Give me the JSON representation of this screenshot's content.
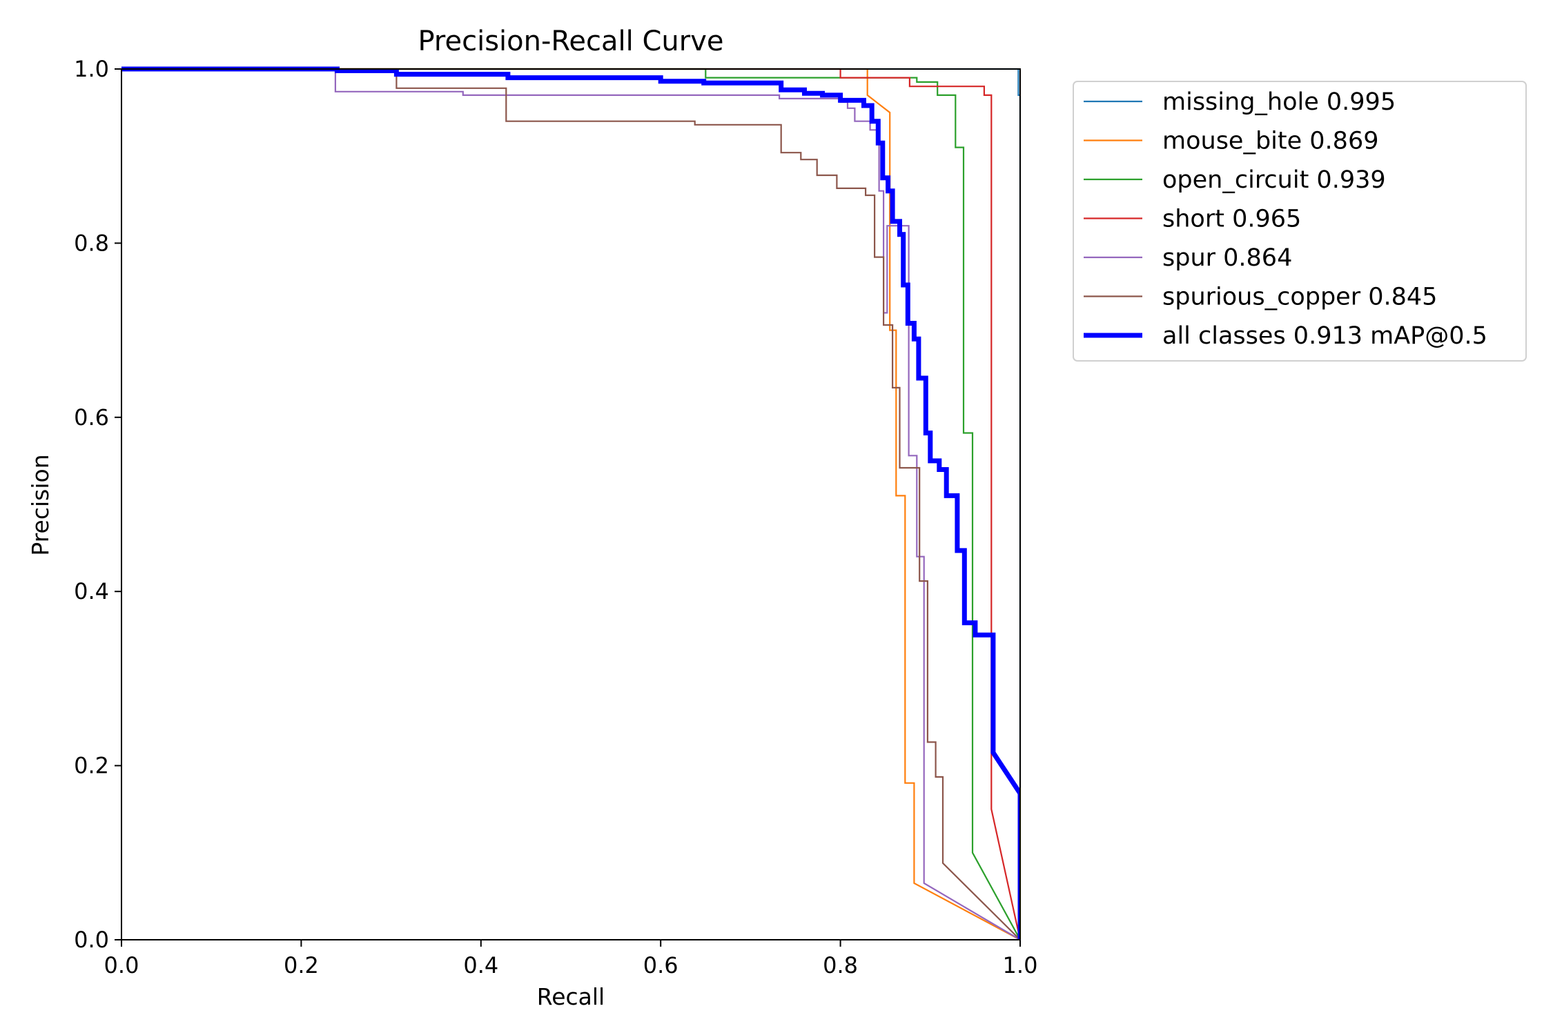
{
  "chart_data": {
    "type": "line",
    "title": "Precision-Recall Curve",
    "xlabel": "Recall",
    "ylabel": "Precision",
    "xlim": [
      0,
      1
    ],
    "ylim": [
      0,
      1
    ],
    "xticks": [
      "0.0",
      "0.2",
      "0.4",
      "0.6",
      "0.8",
      "1.0"
    ],
    "yticks": [
      "0.0",
      "0.2",
      "0.4",
      "0.6",
      "0.8",
      "1.0"
    ],
    "grid": false,
    "legend_position": "upper-right-outside",
    "series": [
      {
        "name": "missing_hole 0.995",
        "color": "#1f77b4",
        "width": "thin",
        "points": [
          [
            0,
            1
          ],
          [
            0.998,
            1
          ],
          [
            0.998,
            0.97
          ],
          [
            1,
            0.97
          ],
          [
            1,
            0
          ]
        ]
      },
      {
        "name": "mouse_bite 0.869",
        "color": "#ff7f0e",
        "width": "thin",
        "points": [
          [
            0,
            1
          ],
          [
            0.83,
            1
          ],
          [
            0.83,
            0.97
          ],
          [
            0.855,
            0.95
          ],
          [
            0.855,
            0.7
          ],
          [
            0.862,
            0.7
          ],
          [
            0.862,
            0.51
          ],
          [
            0.872,
            0.51
          ],
          [
            0.872,
            0.18
          ],
          [
            0.882,
            0.18
          ],
          [
            0.882,
            0.065
          ],
          [
            1,
            0
          ]
        ]
      },
      {
        "name": "open_circuit 0.939",
        "color": "#2ca02c",
        "width": "thin",
        "points": [
          [
            0,
            1
          ],
          [
            0.65,
            1
          ],
          [
            0.65,
            0.99
          ],
          [
            0.885,
            0.99
          ],
          [
            0.885,
            0.985
          ],
          [
            0.908,
            0.985
          ],
          [
            0.908,
            0.97
          ],
          [
            0.928,
            0.97
          ],
          [
            0.928,
            0.91
          ],
          [
            0.937,
            0.91
          ],
          [
            0.937,
            0.582
          ],
          [
            0.947,
            0.582
          ],
          [
            0.947,
            0.1
          ],
          [
            1,
            0
          ]
        ]
      },
      {
        "name": "short 0.965",
        "color": "#d62728",
        "width": "thin",
        "points": [
          [
            0,
            1
          ],
          [
            0.8,
            1
          ],
          [
            0.8,
            0.99
          ],
          [
            0.877,
            0.99
          ],
          [
            0.877,
            0.98
          ],
          [
            0.96,
            0.98
          ],
          [
            0.96,
            0.97
          ],
          [
            0.968,
            0.97
          ],
          [
            0.968,
            0.15
          ],
          [
            1,
            0
          ]
        ]
      },
      {
        "name": "spur 0.864",
        "color": "#9467bd",
        "width": "thin",
        "points": [
          [
            0,
            1
          ],
          [
            0.238,
            1
          ],
          [
            0.238,
            0.974
          ],
          [
            0.38,
            0.974
          ],
          [
            0.38,
            0.97
          ],
          [
            0.732,
            0.97
          ],
          [
            0.732,
            0.966
          ],
          [
            0.8,
            0.966
          ],
          [
            0.8,
            0.962
          ],
          [
            0.808,
            0.962
          ],
          [
            0.808,
            0.955
          ],
          [
            0.816,
            0.955
          ],
          [
            0.816,
            0.94
          ],
          [
            0.833,
            0.94
          ],
          [
            0.833,
            0.93
          ],
          [
            0.843,
            0.93
          ],
          [
            0.843,
            0.86
          ],
          [
            0.848,
            0.86
          ],
          [
            0.848,
            0.72
          ],
          [
            0.852,
            0.72
          ],
          [
            0.852,
            0.82
          ],
          [
            0.87,
            0.82
          ],
          [
            0.87,
            0.82
          ],
          [
            0.876,
            0.82
          ],
          [
            0.876,
            0.556
          ],
          [
            0.885,
            0.556
          ],
          [
            0.885,
            0.44
          ],
          [
            0.893,
            0.44
          ],
          [
            0.893,
            0.065
          ],
          [
            1,
            0
          ]
        ]
      },
      {
        "name": "spurious_copper 0.845",
        "color": "#8c564b",
        "width": "thin",
        "points": [
          [
            0,
            1
          ],
          [
            0.306,
            1
          ],
          [
            0.306,
            0.978
          ],
          [
            0.428,
            0.978
          ],
          [
            0.428,
            0.94
          ],
          [
            0.638,
            0.94
          ],
          [
            0.638,
            0.936
          ],
          [
            0.734,
            0.936
          ],
          [
            0.734,
            0.904
          ],
          [
            0.756,
            0.904
          ],
          [
            0.756,
            0.896
          ],
          [
            0.774,
            0.896
          ],
          [
            0.774,
            0.878
          ],
          [
            0.796,
            0.878
          ],
          [
            0.796,
            0.863
          ],
          [
            0.828,
            0.863
          ],
          [
            0.828,
            0.855
          ],
          [
            0.838,
            0.855
          ],
          [
            0.838,
            0.784
          ],
          [
            0.848,
            0.784
          ],
          [
            0.848,
            0.706
          ],
          [
            0.858,
            0.706
          ],
          [
            0.858,
            0.634
          ],
          [
            0.866,
            0.634
          ],
          [
            0.866,
            0.542
          ],
          [
            0.888,
            0.542
          ],
          [
            0.888,
            0.412
          ],
          [
            0.897,
            0.412
          ],
          [
            0.897,
            0.227
          ],
          [
            0.906,
            0.227
          ],
          [
            0.906,
            0.187
          ],
          [
            0.914,
            0.187
          ],
          [
            0.914,
            0.088
          ],
          [
            1,
            0
          ]
        ]
      },
      {
        "name": "all classes 0.913 mAP@0.5",
        "color": "#0000ff",
        "width": "thick",
        "points": [
          [
            0,
            1
          ],
          [
            0.24,
            1
          ],
          [
            0.24,
            0.998
          ],
          [
            0.306,
            0.998
          ],
          [
            0.306,
            0.994
          ],
          [
            0.43,
            0.994
          ],
          [
            0.43,
            0.99
          ],
          [
            0.6,
            0.99
          ],
          [
            0.6,
            0.986
          ],
          [
            0.648,
            0.986
          ],
          [
            0.648,
            0.984
          ],
          [
            0.734,
            0.984
          ],
          [
            0.734,
            0.976
          ],
          [
            0.76,
            0.976
          ],
          [
            0.76,
            0.972
          ],
          [
            0.78,
            0.972
          ],
          [
            0.78,
            0.97
          ],
          [
            0.8,
            0.97
          ],
          [
            0.8,
            0.964
          ],
          [
            0.826,
            0.964
          ],
          [
            0.826,
            0.958
          ],
          [
            0.835,
            0.958
          ],
          [
            0.835,
            0.94
          ],
          [
            0.842,
            0.94
          ],
          [
            0.842,
            0.915
          ],
          [
            0.847,
            0.915
          ],
          [
            0.847,
            0.875
          ],
          [
            0.853,
            0.875
          ],
          [
            0.853,
            0.86
          ],
          [
            0.858,
            0.86
          ],
          [
            0.858,
            0.825
          ],
          [
            0.866,
            0.825
          ],
          [
            0.866,
            0.81
          ],
          [
            0.87,
            0.81
          ],
          [
            0.87,
            0.752
          ],
          [
            0.875,
            0.752
          ],
          [
            0.875,
            0.708
          ],
          [
            0.882,
            0.708
          ],
          [
            0.882,
            0.69
          ],
          [
            0.887,
            0.69
          ],
          [
            0.887,
            0.645
          ],
          [
            0.895,
            0.645
          ],
          [
            0.895,
            0.582
          ],
          [
            0.9,
            0.582
          ],
          [
            0.9,
            0.55
          ],
          [
            0.91,
            0.55
          ],
          [
            0.91,
            0.54
          ],
          [
            0.918,
            0.54
          ],
          [
            0.918,
            0.51
          ],
          [
            0.93,
            0.51
          ],
          [
            0.93,
            0.447
          ],
          [
            0.938,
            0.447
          ],
          [
            0.938,
            0.364
          ],
          [
            0.95,
            0.364
          ],
          [
            0.95,
            0.35
          ],
          [
            0.97,
            0.35
          ],
          [
            0.97,
            0.215
          ],
          [
            1,
            0.168
          ],
          [
            1,
            0
          ]
        ]
      }
    ]
  }
}
